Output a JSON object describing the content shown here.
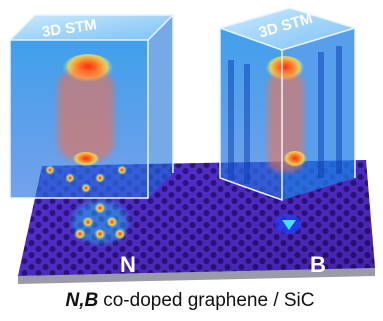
{
  "cubes": [
    {
      "label": "3D STM"
    },
    {
      "label": "3D STM"
    }
  ],
  "dopants": [
    "N",
    "B"
  ],
  "caption": {
    "elements": "N,B",
    "text": "co-doped graphene / SiC"
  }
}
